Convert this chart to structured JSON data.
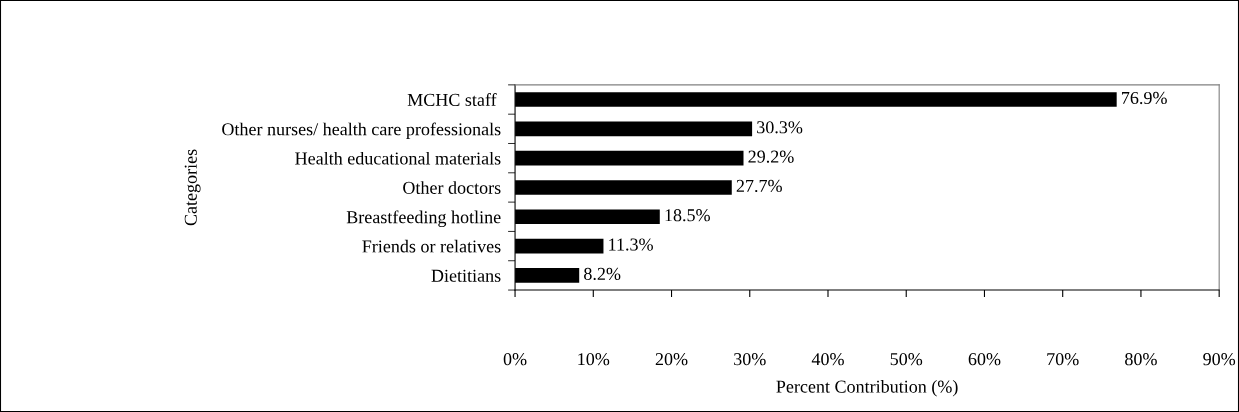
{
  "chart_data": {
    "type": "bar",
    "orientation": "horizontal",
    "categories": [
      "MCHC staff ",
      "Other nurses/ health care professionals",
      "Health educational materials",
      "Other doctors",
      "Breastfeeding hotline",
      "Friends or relatives",
      "Dietitians"
    ],
    "values": [
      76.9,
      30.3,
      29.2,
      27.7,
      18.5,
      11.3,
      8.2
    ],
    "value_labels": [
      "76.9%",
      "30.3%",
      "29.2%",
      "27.7%",
      "18.5%",
      "11.3%",
      "8.2%"
    ],
    "color": "#000000",
    "xlabel": "Percent Contribution (%)",
    "ylabel": "Categories",
    "xlim": [
      0,
      90
    ],
    "xticks": [
      {
        "value": 0,
        "label": "0%"
      },
      {
        "value": 10,
        "label": "10%"
      },
      {
        "value": 20,
        "label": "20%"
      },
      {
        "value": 30,
        "label": "30%"
      },
      {
        "value": 40,
        "label": "40%"
      },
      {
        "value": 50,
        "label": "50%"
      },
      {
        "value": 60,
        "label": "60%"
      },
      {
        "value": 70,
        "label": "70%"
      },
      {
        "value": 80,
        "label": "80%"
      },
      {
        "value": 90,
        "label": "90%"
      }
    ],
    "grid": false,
    "legend": false
  }
}
